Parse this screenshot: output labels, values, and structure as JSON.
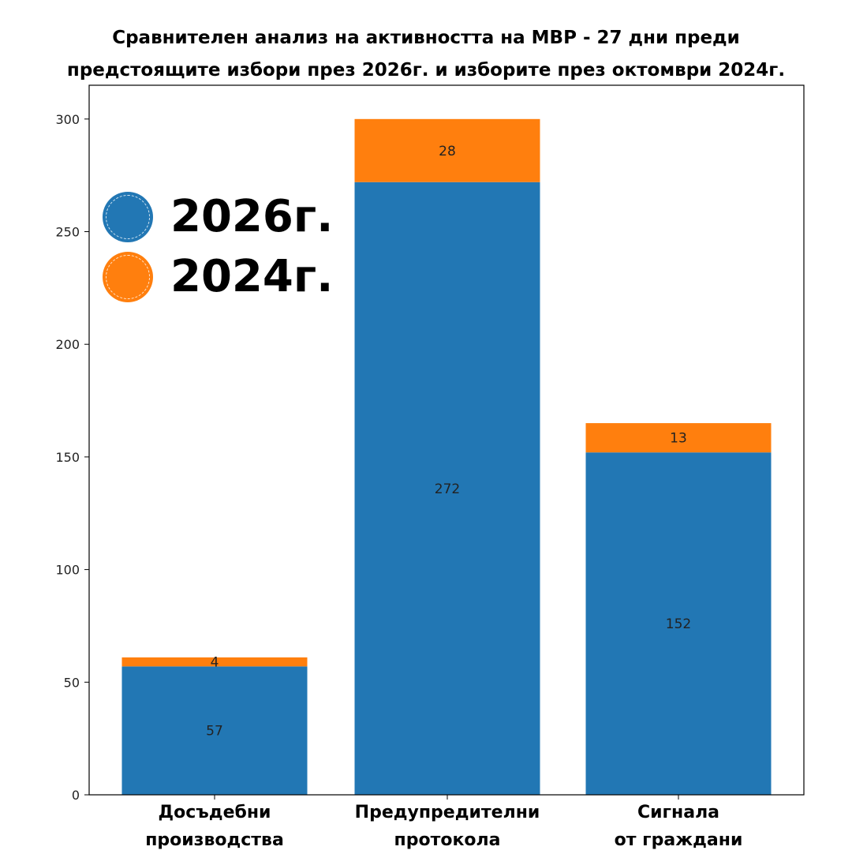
{
  "chart_data": {
    "type": "bar",
    "stacked": true,
    "title_lines": [
      "Сравнителен анализ на активността на МВР - 27 дни преди",
      "предстоящите избори през 2026г. и изборите през октомври 2024г."
    ],
    "categories": [
      [
        "Досъдебни",
        "производства"
      ],
      [
        "Предупредителни",
        "протокола"
      ],
      [
        "Сигнала",
        "от граждани"
      ]
    ],
    "series": [
      {
        "name": "2026г.",
        "color": "#2277b4",
        "values": [
          57,
          272,
          152
        ]
      },
      {
        "name": "2024г.",
        "color": "#ff7f0e",
        "values": [
          4,
          28,
          13
        ]
      }
    ],
    "yticks": [
      0,
      50,
      100,
      150,
      200,
      250,
      300
    ],
    "ylim": [
      0,
      315
    ],
    "xlabel": "",
    "ylabel": "",
    "legend_placement": "upper-left",
    "grid": false
  }
}
